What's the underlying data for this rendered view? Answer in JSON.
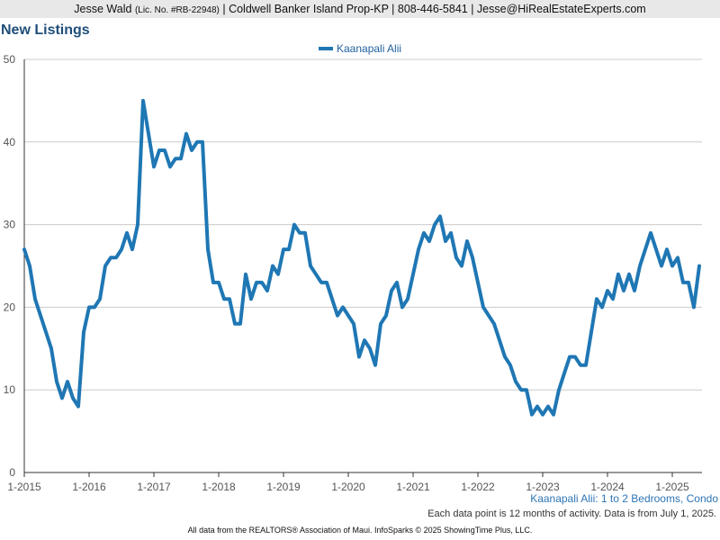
{
  "header": {
    "agent_name": "Jesse Wald",
    "license": "(Lic. No. #RB-22948)",
    "details": " | Coldwell Banker Island Prop-KP | 808-446-5841 | Jesse@HiRealEstateExperts.com"
  },
  "chart_title": "New Listings",
  "subtitle": "Kaanapali Alii: 1 to 2 Bedrooms, Condo",
  "note": "Each data point is 12 months of activity. Data is from July 1, 2025.",
  "footer": "All data from the REALTORS® Association of Maui. InfoSparks © 2025 ShowingTime Plus, LLC.",
  "colors": {
    "series": "#1f77b4",
    "grid": "#cccccc",
    "title": "#1f4e79"
  },
  "chart_data": {
    "type": "line",
    "title": "New Listings",
    "xlabel": "",
    "ylabel": "",
    "ylim": [
      0,
      50
    ],
    "yticks": [
      0,
      10,
      20,
      30,
      40,
      50
    ],
    "xticks": [
      "1-2015",
      "1-2016",
      "1-2017",
      "1-2018",
      "1-2019",
      "1-2020",
      "1-2021",
      "1-2022",
      "1-2023",
      "1-2024",
      "1-2025"
    ],
    "grid": true,
    "legend": "top-center",
    "x_start": "2015-01",
    "x_end": "2025-06",
    "series": [
      {
        "name": "Kaanapali Alii",
        "values": [
          27,
          25,
          21,
          19,
          17,
          15,
          11,
          9,
          11,
          9,
          8,
          17,
          20,
          20,
          21,
          25,
          26,
          26,
          27,
          29,
          27,
          30,
          45,
          41,
          37,
          39,
          39,
          37,
          38,
          38,
          41,
          39,
          40,
          40,
          27,
          23,
          23,
          21,
          21,
          18,
          18,
          24,
          21,
          23,
          23,
          22,
          25,
          24,
          27,
          27,
          30,
          29,
          29,
          25,
          24,
          23,
          23,
          21,
          19,
          20,
          19,
          18,
          14,
          16,
          15,
          13,
          18,
          19,
          22,
          23,
          20,
          21,
          24,
          27,
          29,
          28,
          30,
          31,
          28,
          29,
          26,
          25,
          28,
          26,
          23,
          20,
          19,
          18,
          16,
          14,
          13,
          11,
          10,
          10,
          7,
          8,
          7,
          8,
          7,
          10,
          12,
          14,
          14,
          13,
          13,
          17,
          21,
          20,
          22,
          21,
          24,
          22,
          24,
          22,
          25,
          27,
          29,
          27,
          25,
          27,
          25,
          26,
          23,
          23,
          20,
          25
        ]
      }
    ]
  }
}
